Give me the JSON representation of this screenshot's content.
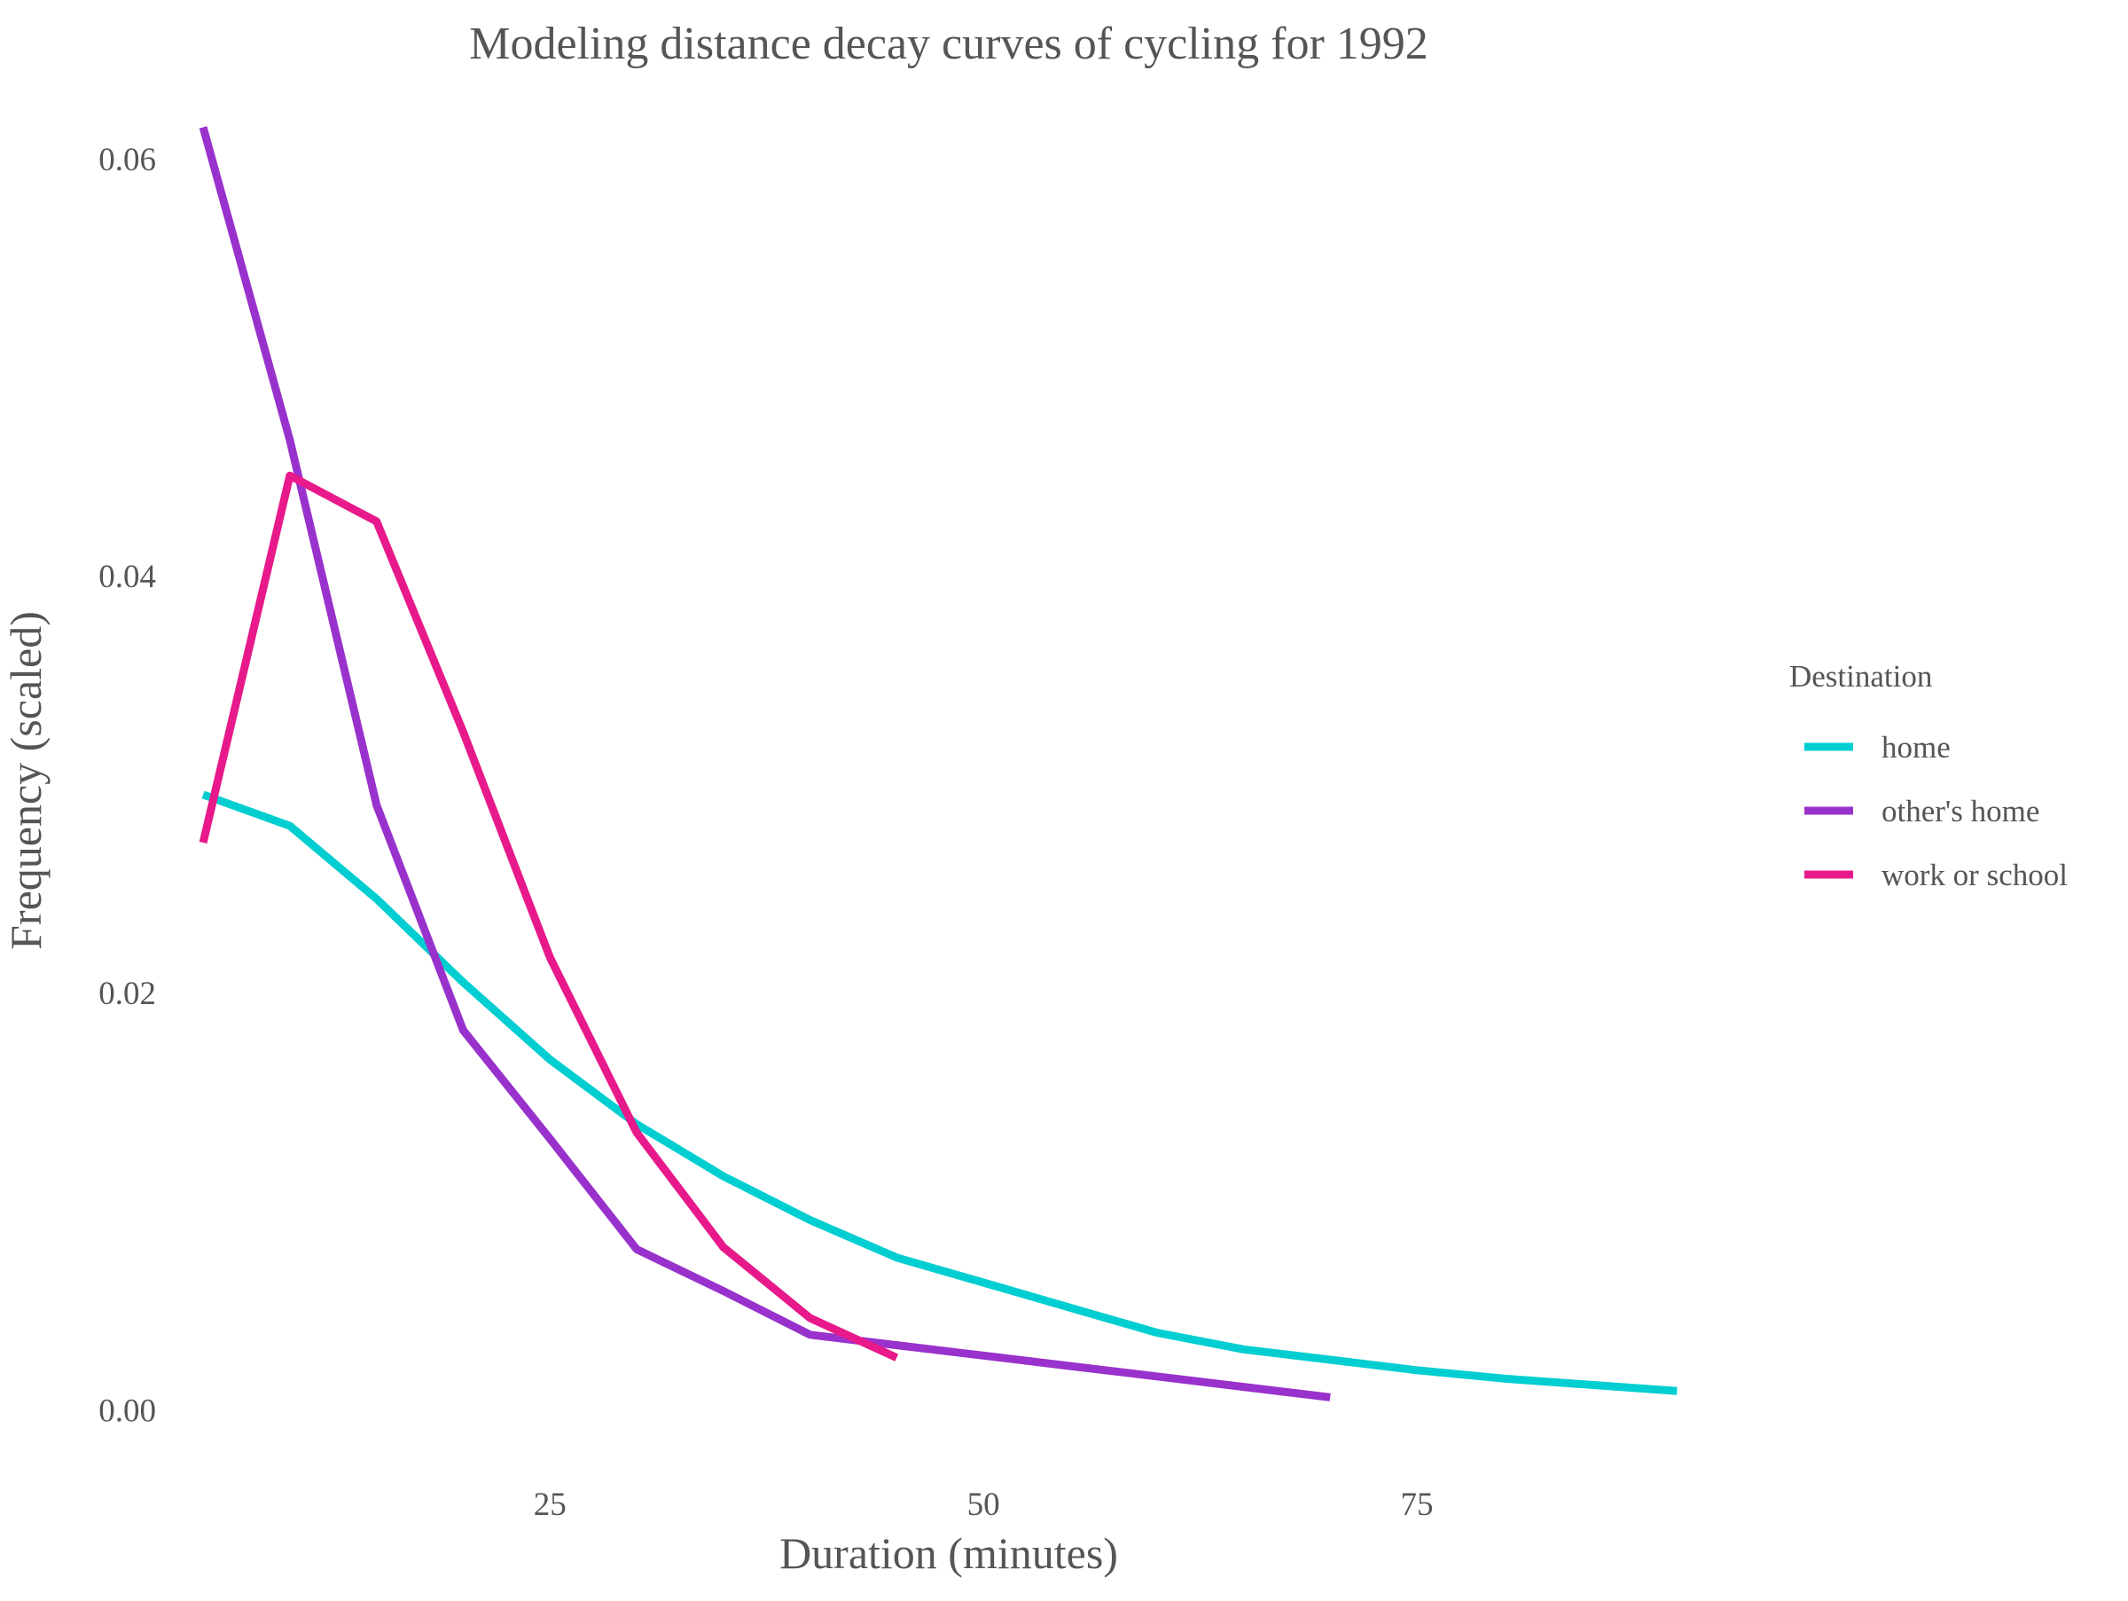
{
  "chart_data": {
    "type": "line",
    "title": "Modeling distance decay curves of cycling for 1992",
    "xlabel": "Duration (minutes)",
    "ylabel": "Frequency (scaled)",
    "xlim": [
      3,
      93
    ],
    "ylim": [
      -0.003,
      0.0625
    ],
    "xticks": [
      25,
      50,
      75
    ],
    "yticks": [
      0.0,
      0.02,
      0.04,
      0.06
    ],
    "xtick_labels": [
      "25",
      "50",
      "75"
    ],
    "ytick_labels": [
      "0.00",
      "0.02",
      "0.04",
      "0.06"
    ],
    "grid": false,
    "legend": {
      "title": "Destination",
      "position": "right"
    },
    "series": [
      {
        "name": "home",
        "color": "#00CED1",
        "x": [
          5,
          10,
          15,
          20,
          25,
          30,
          35,
          40,
          45,
          50,
          55,
          60,
          65,
          70,
          75,
          80,
          85,
          90
        ],
        "y": [
          0.0295,
          0.028,
          0.0245,
          0.0205,
          0.0168,
          0.0137,
          0.0112,
          0.0091,
          0.0073,
          0.0061,
          0.0049,
          0.0037,
          0.0029,
          0.0024,
          0.0019,
          0.0015,
          0.0012,
          0.0009
        ]
      },
      {
        "name": "other's home",
        "color": "#9932CC",
        "x": [
          5,
          10,
          15,
          20,
          25,
          30,
          35,
          40,
          45,
          50,
          55,
          60,
          65,
          70
        ],
        "y": [
          0.0615,
          0.0465,
          0.029,
          0.0182,
          0.013,
          0.0077,
          0.0057,
          0.0036,
          0.0031,
          0.0026,
          0.0021,
          0.0016,
          0.0011,
          0.0006
        ]
      },
      {
        "name": "work or school",
        "color": "#E8198B",
        "x": [
          5,
          10,
          15,
          20,
          25,
          30,
          35,
          40,
          45
        ],
        "y": [
          0.0272,
          0.0448,
          0.0426,
          0.0325,
          0.0217,
          0.0133,
          0.0078,
          0.0044,
          0.0025
        ]
      }
    ]
  }
}
